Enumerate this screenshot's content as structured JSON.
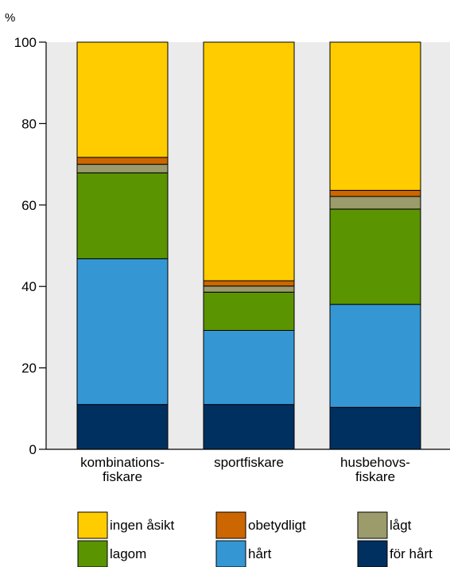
{
  "chart_data": {
    "type": "bar",
    "stacked": true,
    "ylabel": "%",
    "ylim": [
      0,
      100
    ],
    "yticks": [
      0,
      20,
      40,
      60,
      80,
      100
    ],
    "grid": false,
    "legend_position": "bottom",
    "categories": [
      {
        "lines": [
          "kombinations-",
          "fiskare"
        ]
      },
      {
        "lines": [
          "sportfiskare"
        ]
      },
      {
        "lines": [
          "husbehovs-",
          "fiskare"
        ]
      }
    ],
    "series": [
      {
        "name": "för hårt",
        "color": "#00305f",
        "values": [
          11,
          11,
          10.3
        ]
      },
      {
        "name": "hårt",
        "color": "#3497d4",
        "values": [
          35.8,
          18.2,
          25.3
        ]
      },
      {
        "name": "lagom",
        "color": "#5a9400",
        "values": [
          21.1,
          9.4,
          23.4
        ]
      },
      {
        "name": "lågt",
        "color": "#9b9b6b",
        "values": [
          2.1,
          1.5,
          3.1
        ]
      },
      {
        "name": "obetydligt",
        "color": "#cc6600",
        "values": [
          1.7,
          1.3,
          1.5
        ]
      },
      {
        "name": "ingen åsikt",
        "color": "#ffcc00",
        "values": [
          28.3,
          58.6,
          36.4
        ]
      }
    ],
    "legend_order": [
      "ingen åsikt",
      "obetydligt",
      "lågt",
      "lagom",
      "hårt",
      "för hårt"
    ]
  }
}
